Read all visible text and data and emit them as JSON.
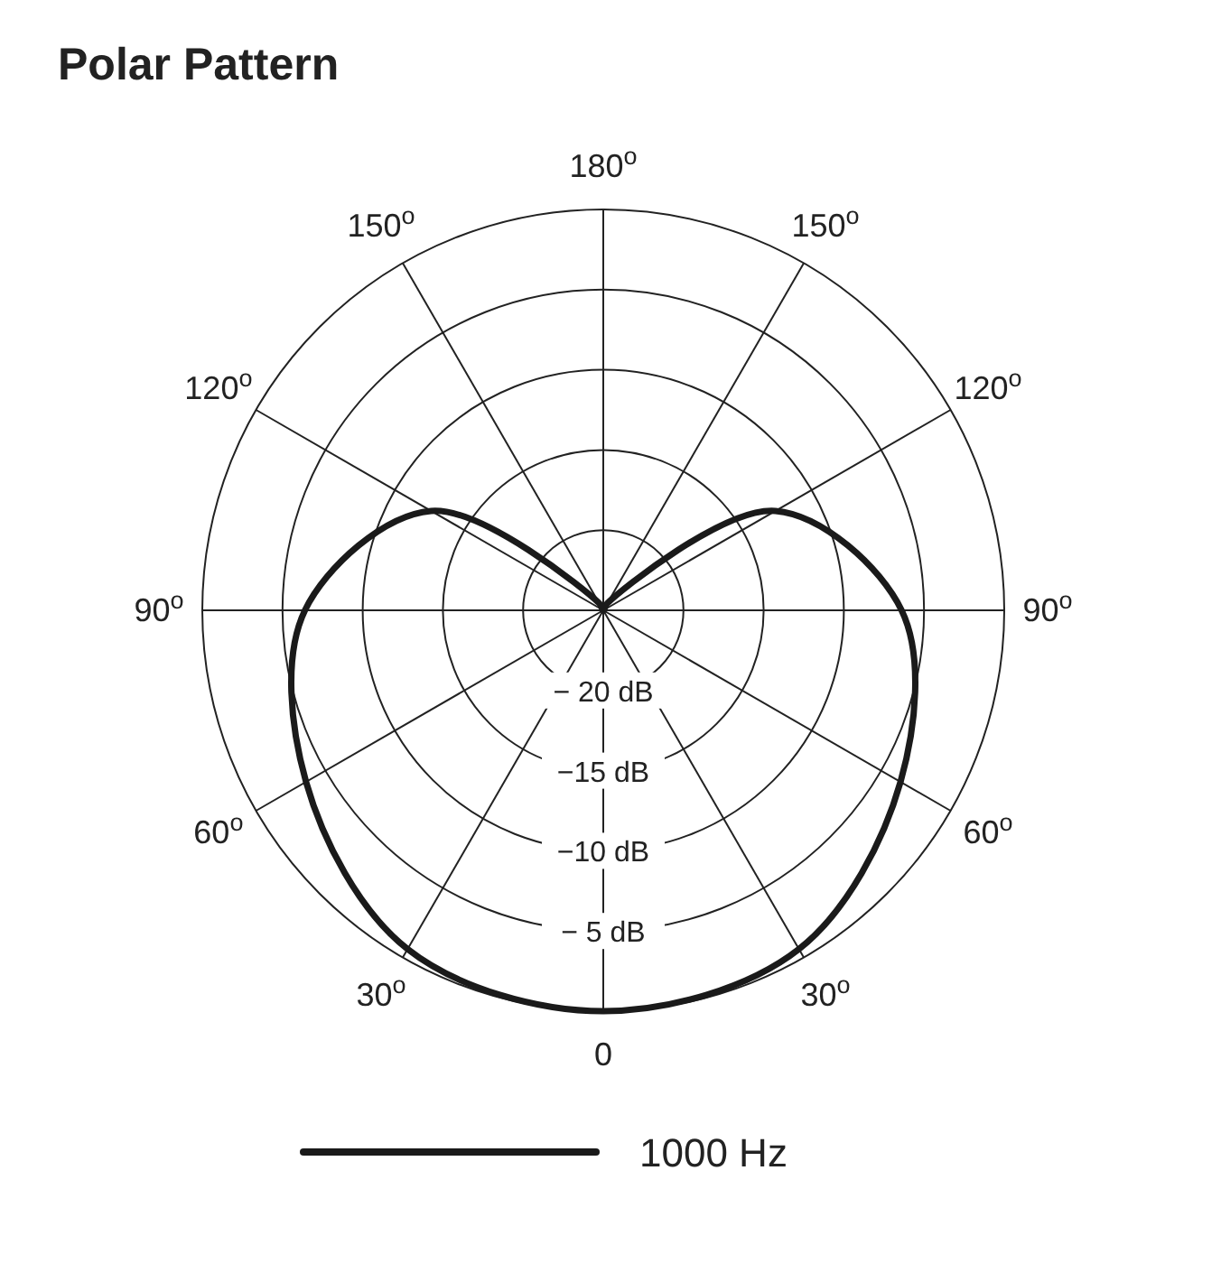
{
  "chart_data": {
    "type": "radar",
    "title": "Polar Pattern",
    "categories": [
      "180$^{o}$",
      "150$^{o}$",
      "120$^{o}$",
      "90$^{o}$",
      "60$^{o}$",
      "30$^{o}$",
      "0",
      "30$^{o}$",
      "60$^{o}$",
      "90$^{o}$",
      "120$^{o}$",
      "150$^{o}$"
    ],
    "series": [
      {
        "name": "1000 Hz",
        "color": "#1a1a1a",
        "values": [
          -25,
          -24.5,
          -12.6,
          -6.4,
          -3.6,
          -0.6,
          0,
          -0.6,
          -3.6,
          -6.4,
          -12.6,
          -24.5
        ]
      }
    ],
    "ylim": [
      -25,
      0
    ],
    "yticks": [
      {
        "value": -20,
        "label": "− 20 dB"
      },
      {
        "value": -15,
        "label": "−15 dB"
      },
      {
        "value": -10,
        "label": "−10 dB"
      },
      {
        "value": -5,
        "label": "− 5 dB"
      }
    ],
    "grid": true,
    "legend": "bottom",
    "line_style": "solid",
    "marker": "none"
  }
}
